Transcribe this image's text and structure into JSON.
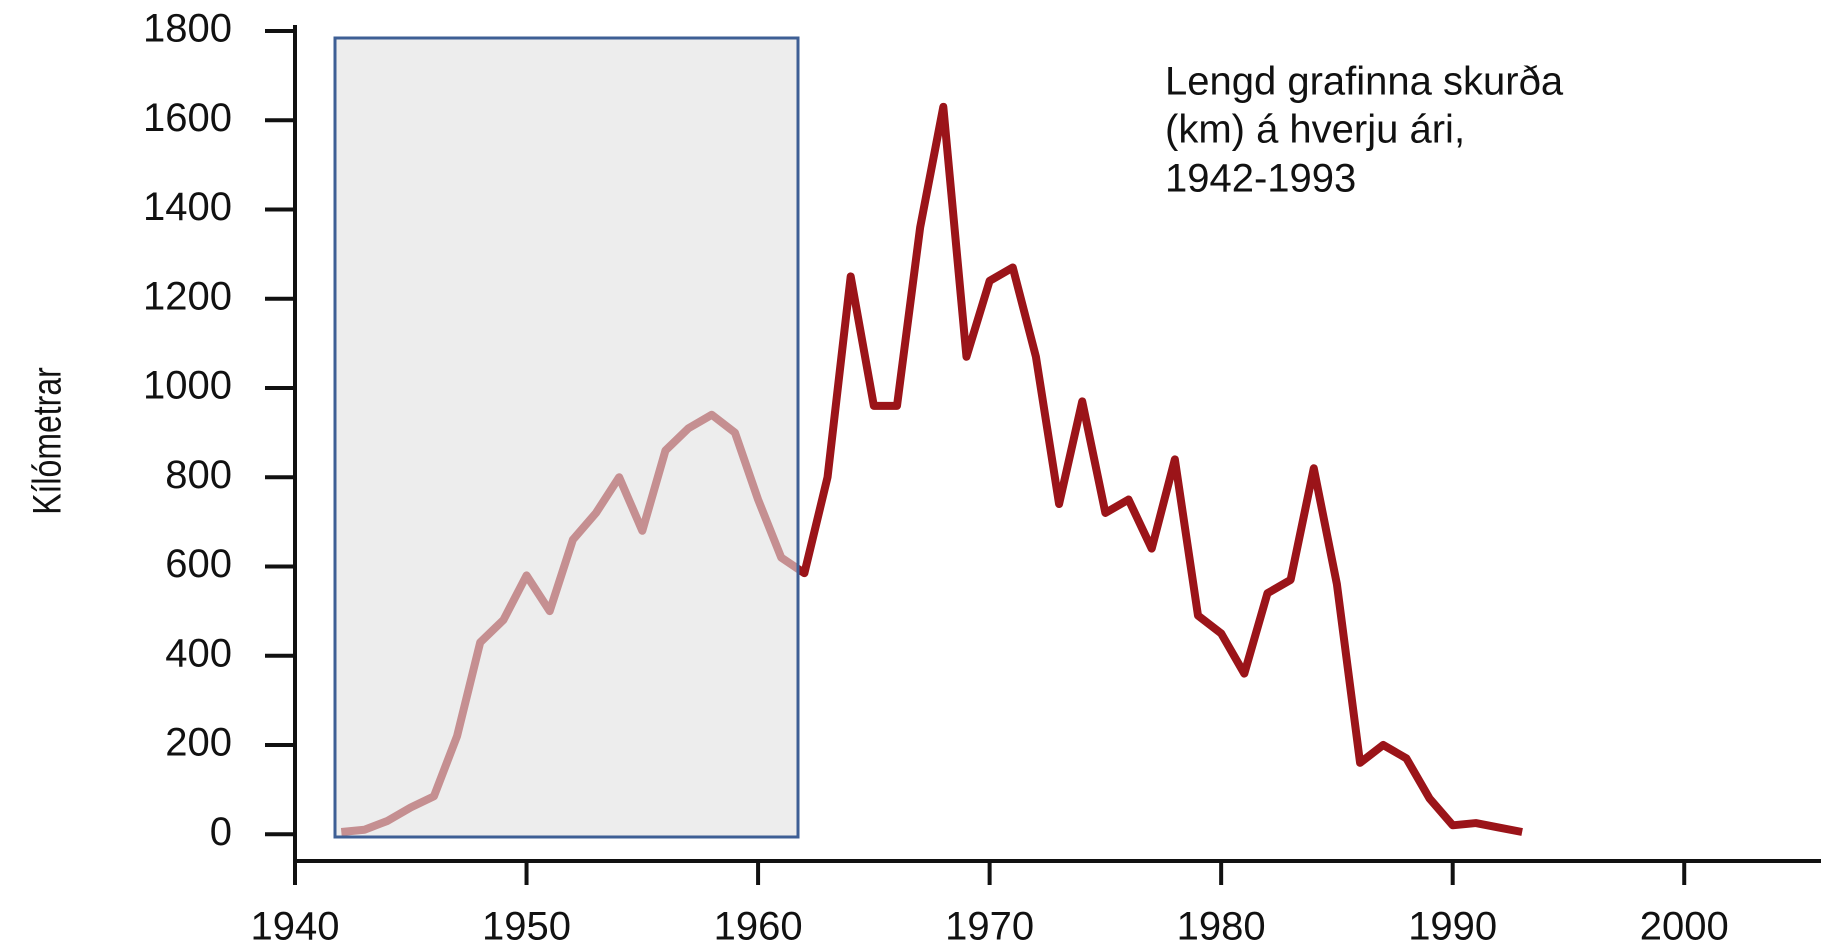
{
  "chart_data": {
    "type": "line",
    "title": [
      "Lengd grafinna skurða",
      "(km) á hverju ári,",
      "1942-1993"
    ],
    "y_label": "Kílómetrar",
    "x": [
      1942,
      1943,
      1944,
      1945,
      1946,
      1947,
      1948,
      1949,
      1950,
      1951,
      1952,
      1953,
      1954,
      1955,
      1956,
      1957,
      1958,
      1959,
      1960,
      1961,
      1962,
      1963,
      1964,
      1965,
      1966,
      1967,
      1968,
      1969,
      1970,
      1971,
      1972,
      1973,
      1974,
      1975,
      1976,
      1977,
      1978,
      1979,
      1980,
      1981,
      1982,
      1983,
      1984,
      1985,
      1986,
      1987,
      1988,
      1989,
      1990,
      1991,
      1992,
      1993
    ],
    "series": [
      {
        "name": "Kílómetrar",
        "color": "#9b1419",
        "values": [
          5,
          10,
          30,
          60,
          85,
          220,
          430,
          480,
          580,
          500,
          660,
          720,
          800,
          680,
          860,
          910,
          940,
          900,
          750,
          620,
          585,
          800,
          1250,
          960,
          960,
          1360,
          1630,
          1070,
          1240,
          1270,
          1070,
          740,
          970,
          720,
          750,
          640,
          840,
          490,
          450,
          360,
          540,
          570,
          820,
          560,
          160,
          200,
          170,
          80,
          20,
          25,
          15,
          5
        ]
      }
    ],
    "xlim": [
      1940,
      2005
    ],
    "xticks": [
      1940,
      1950,
      1960,
      1970,
      1980,
      1990,
      2000
    ],
    "ylim": [
      -60,
      1800
    ],
    "yticks": [
      0,
      200,
      400,
      600,
      800,
      1000,
      1200,
      1400,
      1600,
      1800
    ]
  }
}
